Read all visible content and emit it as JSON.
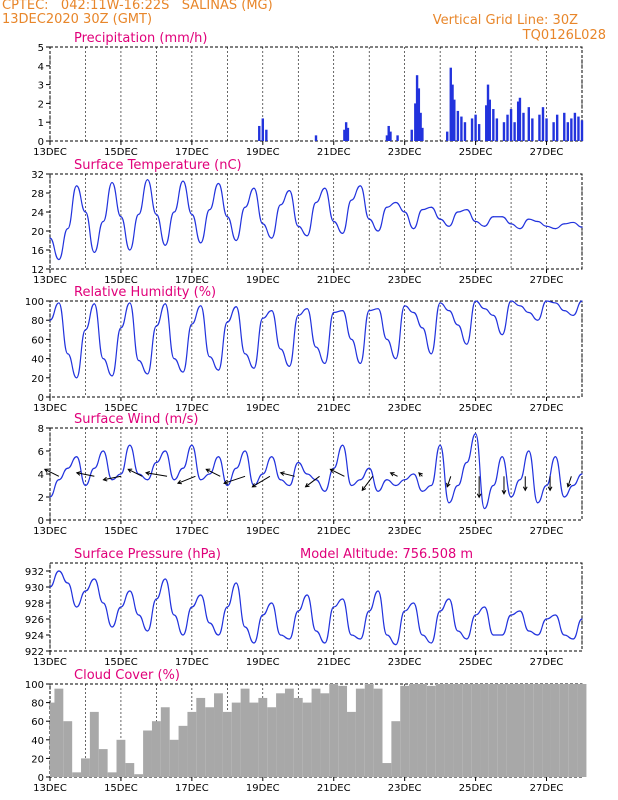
{
  "header": {
    "left_line1": "CPTEC:   042:11W-16:22S   SALINAS (MG)",
    "left_line2": "13DEC2020 30Z (GMT)",
    "right_line1": "Vertical Grid Line: 30Z",
    "right_line2": "TQ0126L028"
  },
  "x_dates": [
    "13DEC",
    "15DEC",
    "17DEC",
    "19DEC",
    "21DEC",
    "23DEC",
    "25DEC",
    "27DEC"
  ],
  "colors": {
    "series": "#2233dd",
    "header": "#e8862a",
    "title": "#e0007a",
    "cloud": "#a8a8a8",
    "arrow": "#000000"
  },
  "chart_data": [
    {
      "type": "bar",
      "title": "Precipitation (mm/h)",
      "ylim": [
        0,
        5
      ],
      "yticks": [
        0,
        1,
        2,
        3,
        4,
        5
      ],
      "x_days": [
        [
          5.9,
          0.8
        ],
        [
          6.0,
          1.2
        ],
        [
          6.1,
          0.6
        ],
        [
          7.5,
          0.3
        ],
        [
          8.3,
          0.6
        ],
        [
          8.35,
          1.0
        ],
        [
          8.4,
          0.7
        ],
        [
          9.5,
          0.3
        ],
        [
          9.55,
          0.8
        ],
        [
          9.6,
          0.5
        ],
        [
          9.8,
          0.3
        ],
        [
          10.2,
          0.6
        ],
        [
          10.3,
          2.0
        ],
        [
          10.35,
          3.5
        ],
        [
          10.4,
          2.8
        ],
        [
          10.45,
          1.5
        ],
        [
          10.5,
          0.7
        ],
        [
          11.2,
          0.5
        ],
        [
          11.3,
          3.9
        ],
        [
          11.35,
          3.0
        ],
        [
          11.4,
          2.2
        ],
        [
          11.5,
          1.6
        ],
        [
          11.6,
          1.3
        ],
        [
          11.7,
          1.0
        ],
        [
          11.9,
          1.2
        ],
        [
          12.0,
          1.4
        ],
        [
          12.1,
          0.9
        ],
        [
          12.3,
          1.9
        ],
        [
          12.35,
          3.0
        ],
        [
          12.4,
          2.2
        ],
        [
          12.5,
          1.7
        ],
        [
          12.6,
          1.2
        ],
        [
          12.8,
          1.0
        ],
        [
          12.9,
          1.4
        ],
        [
          13.0,
          1.7
        ],
        [
          13.1,
          1.0
        ],
        [
          13.2,
          2.1
        ],
        [
          13.25,
          2.3
        ],
        [
          13.35,
          1.5
        ],
        [
          13.5,
          1.8
        ],
        [
          13.6,
          1.2
        ],
        [
          13.8,
          1.4
        ],
        [
          13.9,
          1.8
        ],
        [
          14.0,
          1.2
        ],
        [
          14.2,
          1.0
        ],
        [
          14.3,
          1.4
        ],
        [
          14.5,
          1.5
        ],
        [
          14.6,
          1.0
        ],
        [
          14.7,
          1.2
        ],
        [
          14.8,
          1.5
        ],
        [
          14.9,
          1.3
        ],
        [
          15.0,
          1.1
        ]
      ],
      "x_start": "13DEC",
      "vertical_grid": "30Z"
    },
    {
      "type": "line",
      "title": "Surface Temperature (nC)",
      "ylim": [
        12,
        32
      ],
      "yticks": [
        12,
        16,
        20,
        24,
        28,
        32
      ],
      "x_days": [
        0.0,
        0.25,
        0.5,
        0.75,
        1.0,
        1.25,
        1.5,
        1.75,
        2.0,
        2.25,
        2.5,
        2.75,
        3.0,
        3.25,
        3.5,
        3.75,
        4.0,
        4.25,
        4.5,
        4.75,
        5.0,
        5.25,
        5.5,
        5.75,
        6.0,
        6.25,
        6.5,
        6.75,
        7.0,
        7.25,
        7.5,
        7.75,
        8.0,
        8.25,
        8.5,
        8.75,
        9.0,
        9.25,
        9.5,
        9.75,
        10.0,
        10.25,
        10.5,
        10.75,
        11.0,
        11.25,
        11.5,
        11.75,
        12.0,
        12.25,
        12.5,
        12.75,
        13.0,
        13.25,
        13.5,
        13.75,
        14.0,
        14.25,
        14.5,
        14.75,
        15.0
      ],
      "values": [
        18.5,
        14.0,
        20.5,
        29.5,
        24.0,
        15.5,
        22.0,
        30.2,
        23.0,
        16.0,
        23.5,
        30.8,
        23.5,
        17.0,
        24.0,
        30.5,
        23.5,
        17.5,
        24.5,
        30.0,
        23.0,
        18.0,
        25.0,
        29.0,
        21.5,
        18.5,
        25.5,
        28.5,
        21.0,
        19.0,
        26.0,
        29.0,
        22.0,
        19.5,
        26.5,
        29.5,
        22.5,
        20.0,
        25.0,
        26.0,
        24.0,
        20.5,
        24.5,
        25.0,
        22.5,
        21.0,
        24.0,
        24.5,
        22.0,
        21.0,
        23.0,
        23.0,
        21.5,
        20.5,
        22.5,
        22.0,
        21.0,
        20.5,
        21.5,
        21.8,
        20.8
      ]
    },
    {
      "type": "line",
      "title": "Relative Humidity (%)",
      "ylim": [
        0,
        100
      ],
      "yticks": [
        0,
        20,
        40,
        60,
        80,
        100
      ],
      "x_days": [
        0.0,
        0.25,
        0.5,
        0.75,
        1.0,
        1.25,
        1.5,
        1.75,
        2.0,
        2.25,
        2.5,
        2.75,
        3.0,
        3.25,
        3.5,
        3.75,
        4.0,
        4.25,
        4.5,
        4.75,
        5.0,
        5.25,
        5.5,
        5.75,
        6.0,
        6.25,
        6.5,
        6.75,
        7.0,
        7.25,
        7.5,
        7.75,
        8.0,
        8.25,
        8.5,
        8.75,
        9.0,
        9.25,
        9.5,
        9.75,
        10.0,
        10.25,
        10.5,
        10.75,
        11.0,
        11.25,
        11.5,
        11.75,
        12.0,
        12.25,
        12.5,
        12.75,
        13.0,
        13.25,
        13.5,
        13.75,
        14.0,
        14.25,
        14.5,
        14.75,
        15.0
      ],
      "values": [
        80,
        98,
        45,
        20,
        70,
        97,
        40,
        22,
        72,
        98,
        38,
        24,
        74,
        97,
        40,
        26,
        76,
        95,
        42,
        28,
        78,
        94,
        45,
        30,
        82,
        90,
        50,
        32,
        85,
        92,
        52,
        35,
        88,
        90,
        60,
        35,
        90,
        92,
        60,
        40,
        95,
        88,
        72,
        45,
        98,
        90,
        75,
        55,
        100,
        92,
        85,
        65,
        100,
        95,
        88,
        80,
        100,
        98,
        90,
        85,
        100
      ]
    },
    {
      "type": "line",
      "title": "Surface Wind (m/s)",
      "ylim": [
        0,
        8
      ],
      "yticks": [
        0,
        2,
        4,
        6,
        8
      ],
      "x_days": [
        0.0,
        0.25,
        0.5,
        0.75,
        1.0,
        1.25,
        1.5,
        1.75,
        2.0,
        2.25,
        2.5,
        2.75,
        3.0,
        3.25,
        3.5,
        3.75,
        4.0,
        4.25,
        4.5,
        4.75,
        5.0,
        5.25,
        5.5,
        5.75,
        6.0,
        6.25,
        6.5,
        6.75,
        7.0,
        7.25,
        7.5,
        7.75,
        8.0,
        8.25,
        8.5,
        8.75,
        9.0,
        9.25,
        9.5,
        9.75,
        10.0,
        10.25,
        10.5,
        10.75,
        11.0,
        11.25,
        11.5,
        11.75,
        12.0,
        12.25,
        12.5,
        12.75,
        13.0,
        13.25,
        13.5,
        13.75,
        14.0,
        14.25,
        14.5,
        14.75,
        15.0
      ],
      "values": [
        2.0,
        3.5,
        4.5,
        5.5,
        3.0,
        4.5,
        6.0,
        3.5,
        4.0,
        6.5,
        4.0,
        3.5,
        5.0,
        6.0,
        3.5,
        4.5,
        6.5,
        3.5,
        4.0,
        5.5,
        3.0,
        4.5,
        6.0,
        3.0,
        4.0,
        5.5,
        3.5,
        3.0,
        5.0,
        4.0,
        3.5,
        2.5,
        4.5,
        6.5,
        3.0,
        3.5,
        4.5,
        2.5,
        3.5,
        3.0,
        3.5,
        4.0,
        2.5,
        3.0,
        6.5,
        1.5,
        3.0,
        5.0,
        7.5,
        1.0,
        3.0,
        5.5,
        2.0,
        3.5,
        6.0,
        1.5,
        3.0,
        5.5,
        2.0,
        3.0,
        4.0
      ],
      "barb_days": [
        0.25,
        1.25,
        2.0,
        2.6,
        3.3,
        4.1,
        4.8,
        5.5,
        6.2,
        6.9,
        7.6,
        8.3,
        9.1,
        9.8,
        10.5,
        11.3,
        12.1,
        12.8,
        13.4,
        14.1,
        14.7
      ],
      "barb_u": [
        2.0,
        2.5,
        2.5,
        2.0,
        3.0,
        2.5,
        2.0,
        3.0,
        2.5,
        2.0,
        2.0,
        2.0,
        1.5,
        1.0,
        0.5,
        0.5,
        0.0,
        0.0,
        0.0,
        0.0,
        0.5
      ],
      "barb_v": [
        1.0,
        0.5,
        -0.5,
        1.0,
        0.5,
        -1.0,
        1.0,
        -1.0,
        -1.5,
        0.5,
        -1.5,
        1.0,
        -2.0,
        0.5,
        0.5,
        -1.5,
        -3.0,
        -2.5,
        -2.0,
        -2.0,
        -1.5
      ]
    },
    {
      "type": "line",
      "title": "Surface Pressure (hPa)",
      "annotation": "Model Altitude: 756.508 m",
      "ylim": [
        922,
        933
      ],
      "yticks": [
        922,
        924,
        926,
        928,
        930,
        932
      ],
      "x_days": [
        0.0,
        0.25,
        0.5,
        0.75,
        1.0,
        1.25,
        1.5,
        1.75,
        2.0,
        2.25,
        2.5,
        2.75,
        3.0,
        3.25,
        3.5,
        3.75,
        4.0,
        4.25,
        4.5,
        4.75,
        5.0,
        5.25,
        5.5,
        5.75,
        6.0,
        6.25,
        6.5,
        6.75,
        7.0,
        7.25,
        7.5,
        7.75,
        8.0,
        8.25,
        8.5,
        8.75,
        9.0,
        9.25,
        9.5,
        9.75,
        10.0,
        10.25,
        10.5,
        10.75,
        11.0,
        11.25,
        11.5,
        11.75,
        12.0,
        12.25,
        12.5,
        12.75,
        13.0,
        13.25,
        13.5,
        13.75,
        14.0,
        14.25,
        14.5,
        14.75,
        15.0
      ],
      "values": [
        930.0,
        932.0,
        930.5,
        927.5,
        929.5,
        931.0,
        928.0,
        925.0,
        927.5,
        929.5,
        926.5,
        924.5,
        928.5,
        931.0,
        926.5,
        924.0,
        927.5,
        929.0,
        925.5,
        924.0,
        927.5,
        930.5,
        925.0,
        923.0,
        926.5,
        928.0,
        924.0,
        923.5,
        927.0,
        929.0,
        924.5,
        923.0,
        927.5,
        928.5,
        924.0,
        923.5,
        927.0,
        929.5,
        924.0,
        922.8,
        927.0,
        928.0,
        924.0,
        923.0,
        927.0,
        928.5,
        924.5,
        923.5,
        926.5,
        927.5,
        924.0,
        924.0,
        926.5,
        927.0,
        924.5,
        924.0,
        926.0,
        926.5,
        924.0,
        923.5,
        926.0
      ]
    },
    {
      "type": "bar",
      "title": "Cloud Cover (%)",
      "ylim": [
        0,
        100
      ],
      "yticks": [
        0,
        20,
        40,
        60,
        80,
        100
      ],
      "x_days": [
        0.0,
        0.25,
        0.5,
        0.75,
        1.0,
        1.25,
        1.5,
        1.75,
        2.0,
        2.25,
        2.5,
        2.75,
        3.0,
        3.25,
        3.5,
        3.75,
        4.0,
        4.25,
        4.5,
        4.75,
        5.0,
        5.25,
        5.5,
        5.75,
        6.0,
        6.25,
        6.5,
        6.75,
        7.0,
        7.25,
        7.5,
        7.75,
        8.0,
        8.25,
        8.5,
        8.75,
        9.0,
        9.25,
        9.5,
        9.75,
        10.0,
        10.25,
        10.5,
        10.75,
        11.0,
        11.25,
        11.5,
        11.75,
        12.0,
        12.25,
        12.5,
        12.75,
        13.0,
        13.25,
        13.5,
        13.75,
        14.0,
        14.25,
        14.5,
        14.75,
        15.0
      ],
      "values": [
        80,
        95,
        60,
        5,
        20,
        70,
        30,
        5,
        40,
        15,
        3,
        50,
        60,
        75,
        40,
        55,
        70,
        85,
        75,
        90,
        70,
        80,
        95,
        80,
        85,
        75,
        90,
        95,
        85,
        80,
        95,
        90,
        100,
        98,
        70,
        95,
        100,
        95,
        15,
        60,
        98,
        100,
        100,
        98,
        100,
        100,
        100,
        100,
        100,
        100,
        100,
        100,
        100,
        100,
        100,
        100,
        100,
        100,
        100,
        100,
        100
      ]
    }
  ]
}
